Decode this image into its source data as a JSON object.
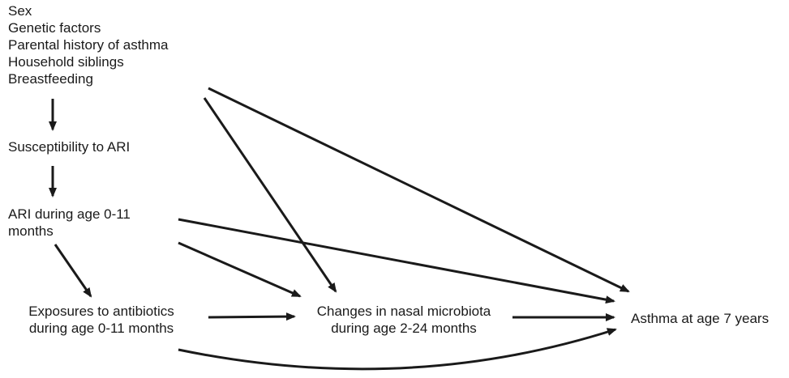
{
  "diagram": {
    "nodes": {
      "confounders": {
        "lines": [
          "Sex",
          "Genetic factors",
          "Parental history of asthma",
          "Household siblings",
          "Breastfeeding"
        ]
      },
      "susceptibility": {
        "lines": [
          "Susceptibility to ARI"
        ]
      },
      "ari": {
        "lines": [
          "ARI during age 0-11",
          "months"
        ]
      },
      "antibiotics": {
        "lines": [
          "Exposures to antibiotics",
          "during age 0-11 months"
        ]
      },
      "microbiota": {
        "lines": [
          "Changes in nasal microbiota",
          "during age 2-24 months"
        ]
      },
      "asthma": {
        "lines": [
          "Asthma at age 7 years"
        ]
      }
    },
    "edges": [
      {
        "from": "confounders",
        "to": "susceptibility"
      },
      {
        "from": "susceptibility",
        "to": "ari"
      },
      {
        "from": "ari",
        "to": "antibiotics"
      },
      {
        "from": "ari",
        "to": "microbiota"
      },
      {
        "from": "ari",
        "to": "asthma"
      },
      {
        "from": "confounders",
        "to": "microbiota"
      },
      {
        "from": "confounders",
        "to": "asthma"
      },
      {
        "from": "antibiotics",
        "to": "microbiota"
      },
      {
        "from": "microbiota",
        "to": "asthma"
      },
      {
        "from": "antibiotics",
        "to": "asthma"
      }
    ],
    "colors": {
      "arrow": "#1a1a1a",
      "text": "#1a1a1a"
    }
  }
}
